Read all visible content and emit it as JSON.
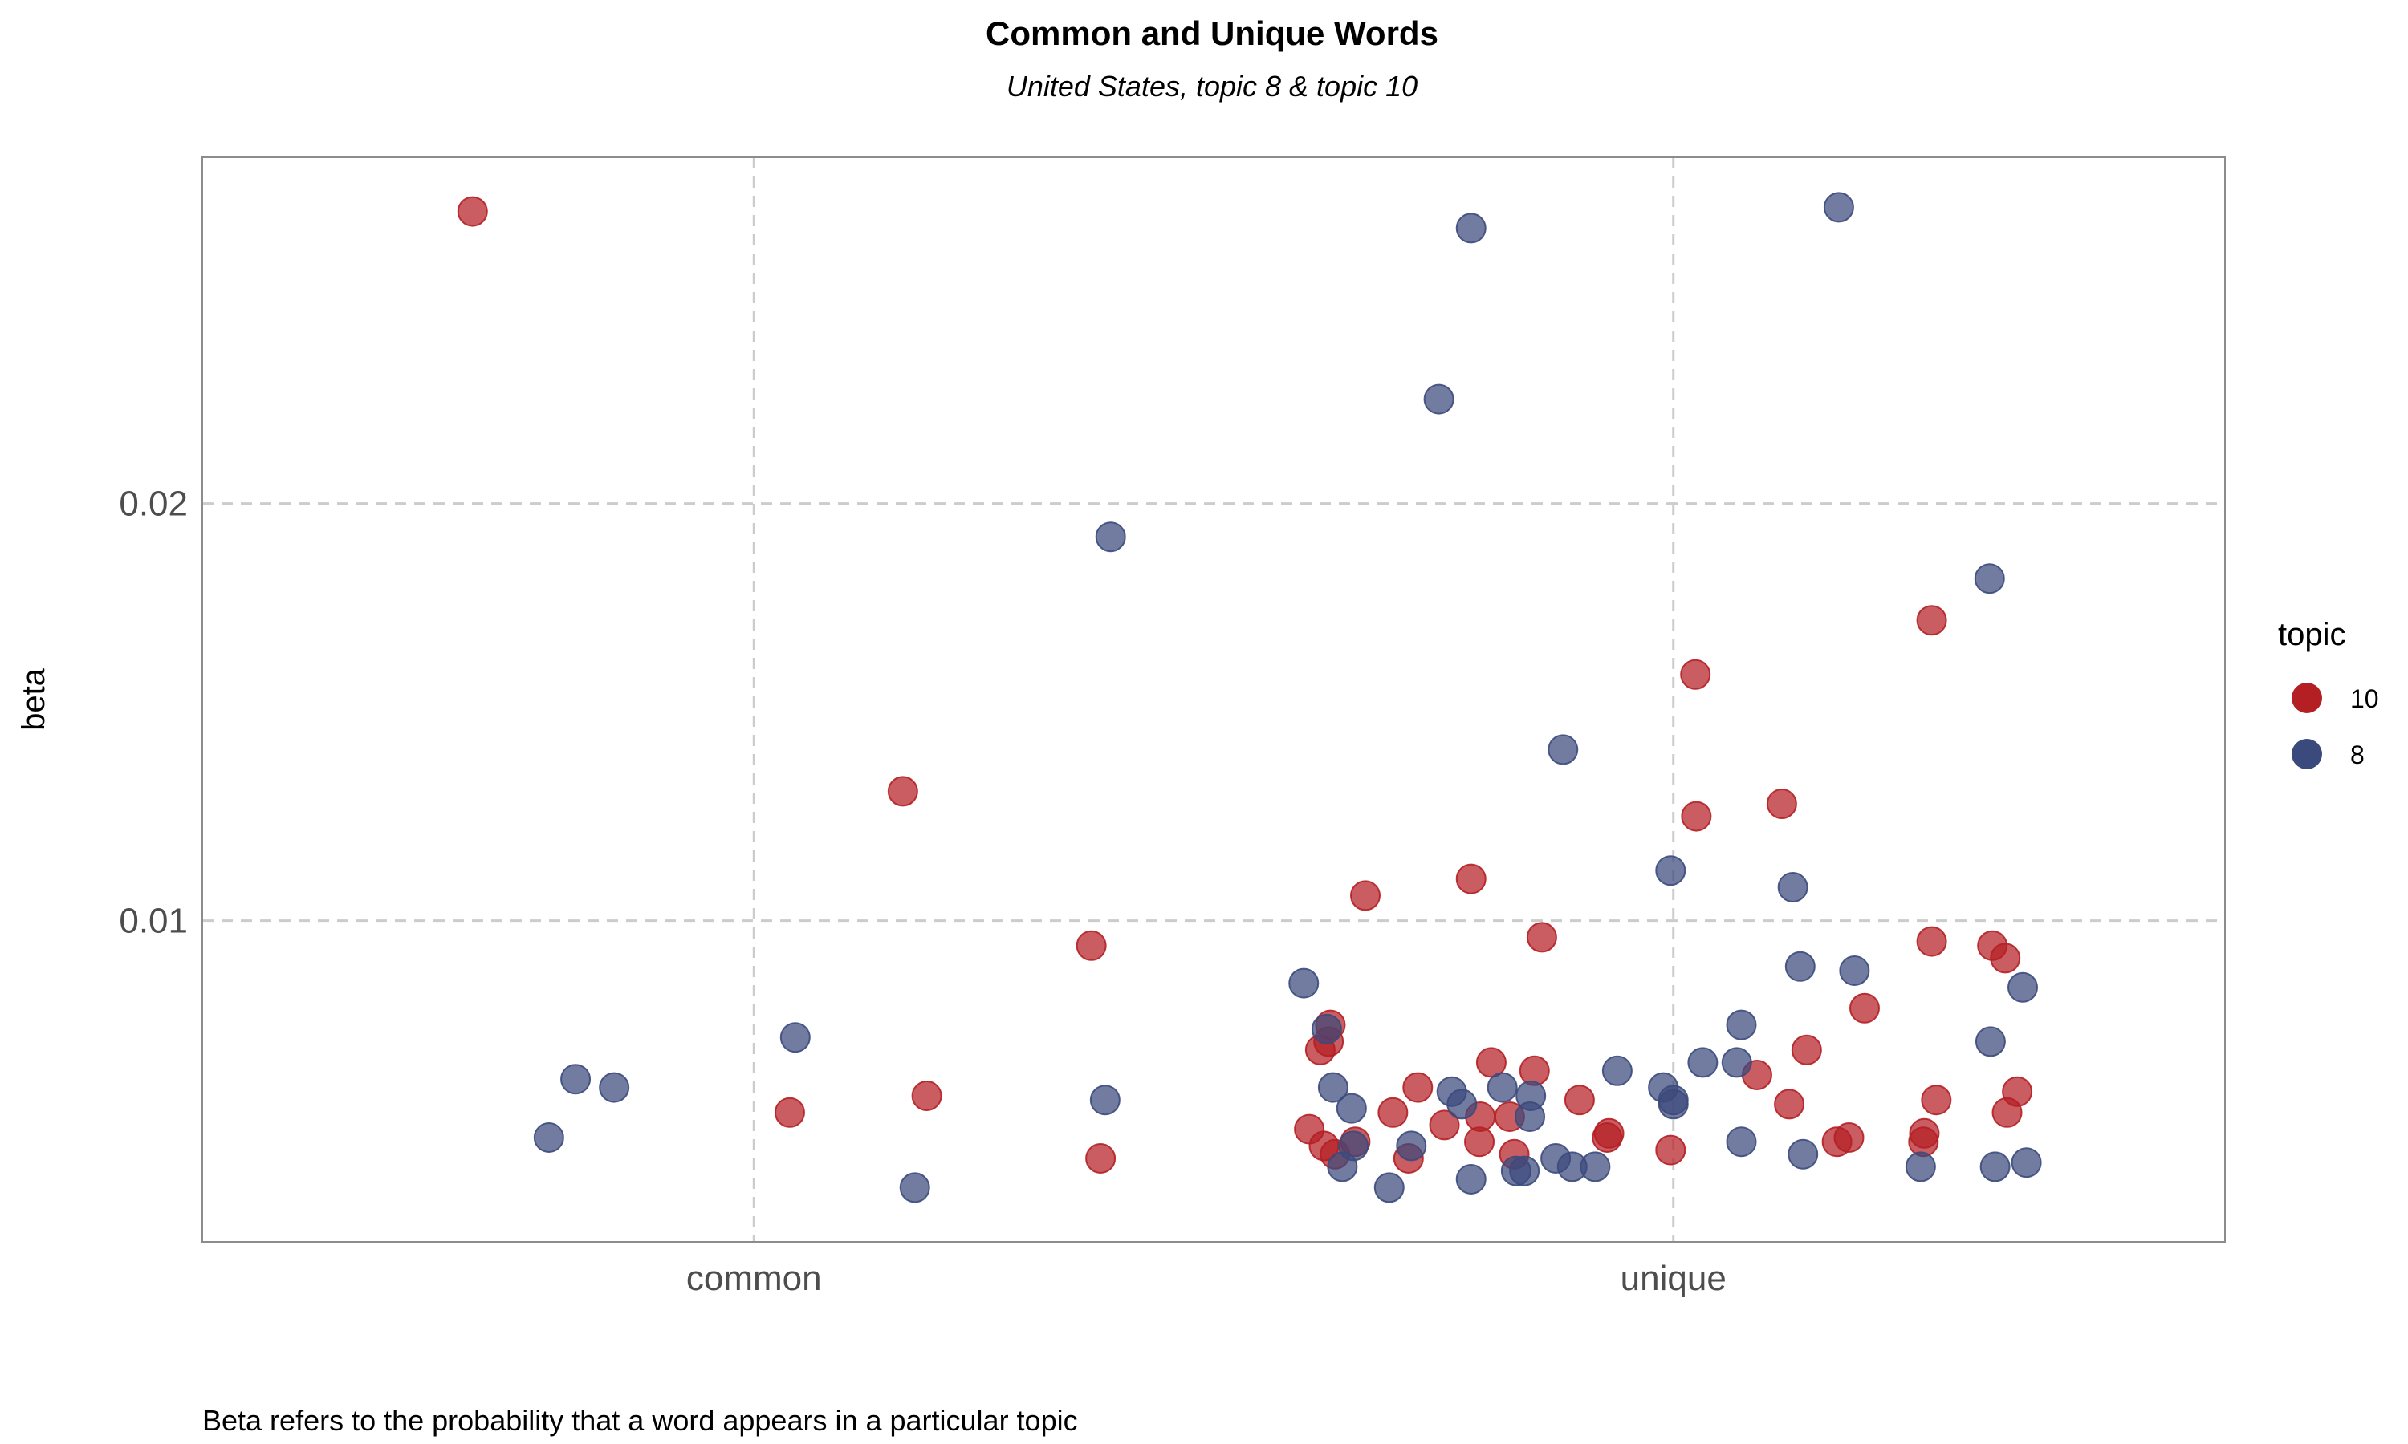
{
  "title": "Common and Unique Words",
  "subtitle": "United States, topic 8 & topic 10",
  "caption": "Beta refers to the probability that a word appears in a particular topic",
  "colors": {
    "10": "#b41f24",
    "8": "#3b4a7c"
  },
  "legend": {
    "title": "topic",
    "entries": [
      {
        "label": "10",
        "key": "10"
      },
      {
        "label": "8",
        "key": "8"
      }
    ]
  },
  "chart_data": {
    "type": "scatter",
    "title": "Common and Unique Words",
    "subtitle": "United States, topic 8 & topic 10",
    "xlabel": "",
    "ylabel": "beta",
    "x_categories": [
      "common",
      "unique"
    ],
    "x_tick_labels": [
      "common",
      "unique"
    ],
    "y_ticks": [
      0.01,
      0.02
    ],
    "y_tick_labels": [
      "0.01",
      "0.02"
    ],
    "xlim": [
      0.4,
      2.6
    ],
    "ylim": [
      0.0023,
      0.0283
    ],
    "grid": true,
    "legend_position": "right",
    "series": [
      {
        "name": "10",
        "points": [
          {
            "x": 0.694,
            "y": 0.027
          },
          {
            "x": 1.039,
            "y": 0.0054
          },
          {
            "x": 1.162,
            "y": 0.0131
          },
          {
            "x": 1.188,
            "y": 0.0058
          },
          {
            "x": 1.367,
            "y": 0.0094
          },
          {
            "x": 1.377,
            "y": 0.0043
          },
          {
            "x": 1.604,
            "y": 0.005
          },
          {
            "x": 1.616,
            "y": 0.0069
          },
          {
            "x": 1.62,
            "y": 0.0046
          },
          {
            "x": 1.625,
            "y": 0.0071
          },
          {
            "x": 1.627,
            "y": 0.0075
          },
          {
            "x": 1.632,
            "y": 0.0044
          },
          {
            "x": 1.654,
            "y": 0.0047
          },
          {
            "x": 1.665,
            "y": 0.0106
          },
          {
            "x": 1.695,
            "y": 0.0054
          },
          {
            "x": 1.712,
            "y": 0.0043
          },
          {
            "x": 1.722,
            "y": 0.006
          },
          {
            "x": 1.751,
            "y": 0.0051
          },
          {
            "x": 1.78,
            "y": 0.011
          },
          {
            "x": 1.789,
            "y": 0.0047
          },
          {
            "x": 1.79,
            "y": 0.0053
          },
          {
            "x": 1.802,
            "y": 0.0066
          },
          {
            "x": 1.822,
            "y": 0.0053
          },
          {
            "x": 1.827,
            "y": 0.0044
          },
          {
            "x": 1.849,
            "y": 0.0064
          },
          {
            "x": 1.857,
            "y": 0.0096
          },
          {
            "x": 1.898,
            "y": 0.0057
          },
          {
            "x": 1.928,
            "y": 0.0048
          },
          {
            "x": 1.93,
            "y": 0.0049
          },
          {
            "x": 1.997,
            "y": 0.0045
          },
          {
            "x": 2.024,
            "y": 0.0159
          },
          {
            "x": 2.025,
            "y": 0.0125
          },
          {
            "x": 2.091,
            "y": 0.0063
          },
          {
            "x": 2.118,
            "y": 0.0128
          },
          {
            "x": 2.126,
            "y": 0.0056
          },
          {
            "x": 2.145,
            "y": 0.0069
          },
          {
            "x": 2.178,
            "y": 0.0047
          },
          {
            "x": 2.191,
            "y": 0.0048
          },
          {
            "x": 2.208,
            "y": 0.0079
          },
          {
            "x": 2.272,
            "y": 0.0047
          },
          {
            "x": 2.273,
            "y": 0.0049
          },
          {
            "x": 2.281,
            "y": 0.0172
          },
          {
            "x": 2.281,
            "y": 0.0095
          },
          {
            "x": 2.286,
            "y": 0.0057
          },
          {
            "x": 2.347,
            "y": 0.0094
          },
          {
            "x": 2.361,
            "y": 0.0091
          },
          {
            "x": 2.363,
            "y": 0.0054
          },
          {
            "x": 2.374,
            "y": 0.0059
          }
        ]
      },
      {
        "name": "8",
        "points": [
          {
            "x": 0.777,
            "y": 0.0048
          },
          {
            "x": 0.806,
            "y": 0.0062
          },
          {
            "x": 0.848,
            "y": 0.006
          },
          {
            "x": 1.045,
            "y": 0.0072
          },
          {
            "x": 1.175,
            "y": 0.0036
          },
          {
            "x": 1.382,
            "y": 0.0057
          },
          {
            "x": 1.388,
            "y": 0.0192
          },
          {
            "x": 1.598,
            "y": 0.0085
          },
          {
            "x": 1.623,
            "y": 0.0074
          },
          {
            "x": 1.63,
            "y": 0.006
          },
          {
            "x": 1.64,
            "y": 0.0041
          },
          {
            "x": 1.65,
            "y": 0.0055
          },
          {
            "x": 1.652,
            "y": 0.0046
          },
          {
            "x": 1.691,
            "y": 0.0036
          },
          {
            "x": 1.715,
            "y": 0.0046
          },
          {
            "x": 1.745,
            "y": 0.0225
          },
          {
            "x": 1.759,
            "y": 0.0059
          },
          {
            "x": 1.77,
            "y": 0.0056
          },
          {
            "x": 1.78,
            "y": 0.0266
          },
          {
            "x": 1.78,
            "y": 0.0038
          },
          {
            "x": 1.814,
            "y": 0.006
          },
          {
            "x": 1.829,
            "y": 0.004
          },
          {
            "x": 1.838,
            "y": 0.004
          },
          {
            "x": 1.844,
            "y": 0.0053
          },
          {
            "x": 1.845,
            "y": 0.0058
          },
          {
            "x": 1.872,
            "y": 0.0043
          },
          {
            "x": 1.88,
            "y": 0.0141
          },
          {
            "x": 1.89,
            "y": 0.0041
          },
          {
            "x": 1.915,
            "y": 0.0041
          },
          {
            "x": 1.939,
            "y": 0.0064
          },
          {
            "x": 1.989,
            "y": 0.006
          },
          {
            "x": 1.997,
            "y": 0.0112
          },
          {
            "x": 2.0,
            "y": 0.0056
          },
          {
            "x": 2.0,
            "y": 0.0057
          },
          {
            "x": 2.032,
            "y": 0.0066
          },
          {
            "x": 2.069,
            "y": 0.0066
          },
          {
            "x": 2.074,
            "y": 0.0075
          },
          {
            "x": 2.074,
            "y": 0.0047
          },
          {
            "x": 2.13,
            "y": 0.0108
          },
          {
            "x": 2.138,
            "y": 0.0089
          },
          {
            "x": 2.141,
            "y": 0.0044
          },
          {
            "x": 2.18,
            "y": 0.0271
          },
          {
            "x": 2.197,
            "y": 0.0088
          },
          {
            "x": 2.269,
            "y": 0.0041
          },
          {
            "x": 2.344,
            "y": 0.0182
          },
          {
            "x": 2.345,
            "y": 0.0071
          },
          {
            "x": 2.35,
            "y": 0.0041
          },
          {
            "x": 2.38,
            "y": 0.0084
          },
          {
            "x": 2.384,
            "y": 0.0042
          }
        ]
      }
    ]
  }
}
